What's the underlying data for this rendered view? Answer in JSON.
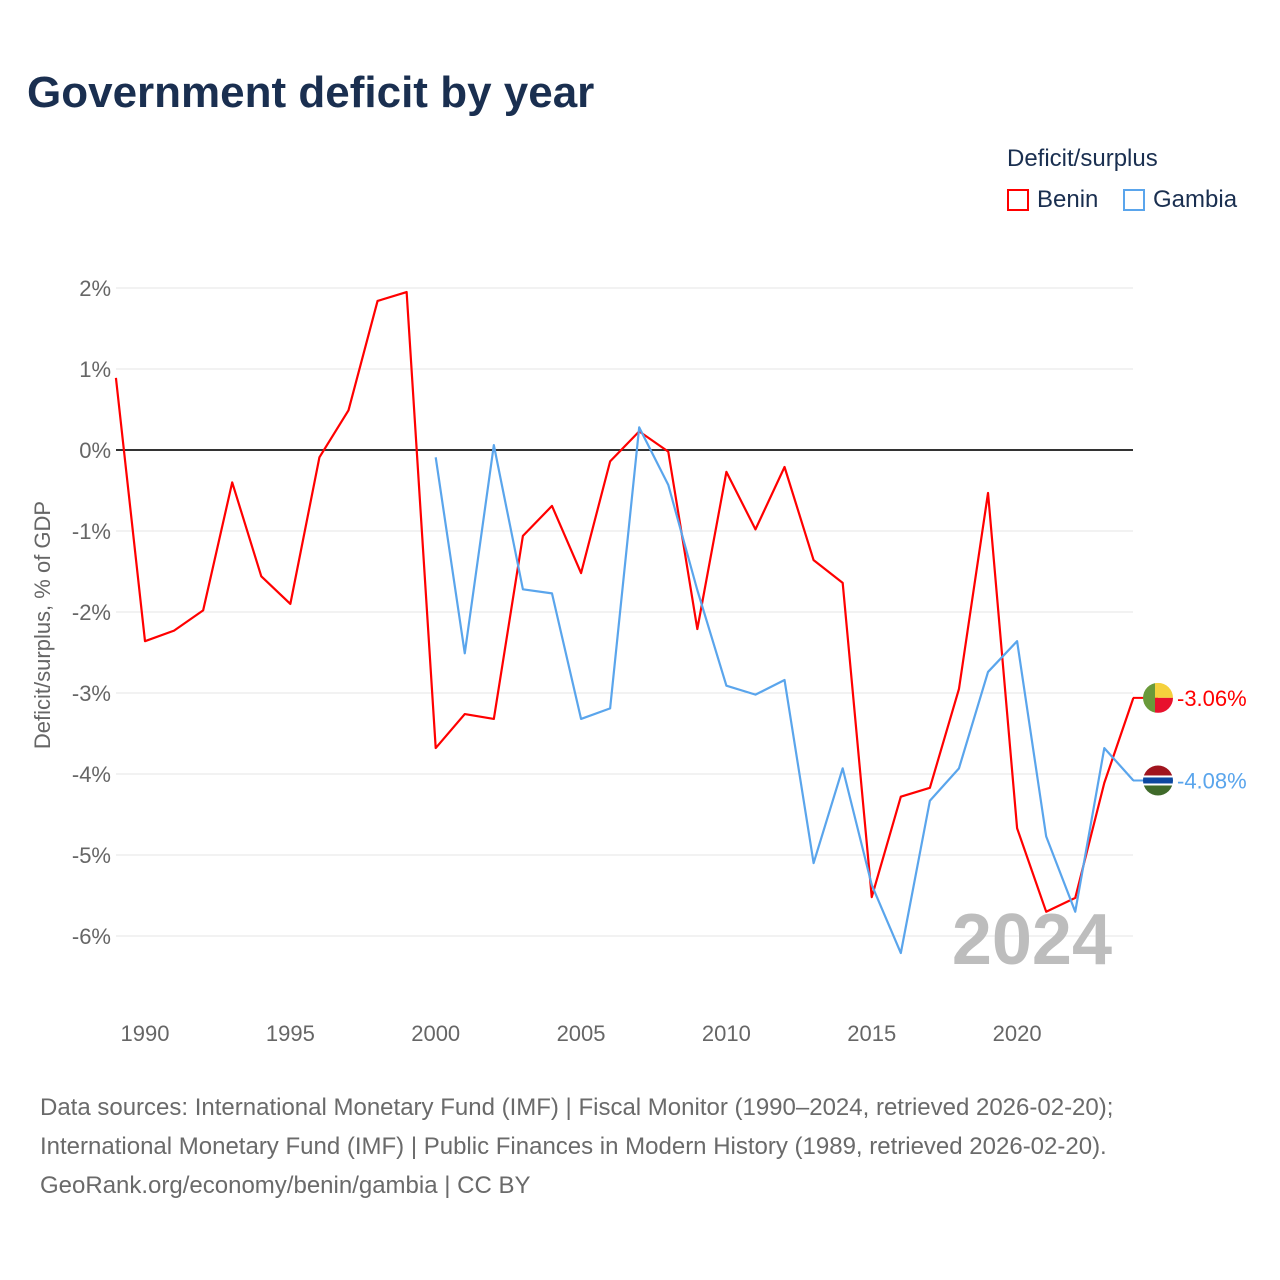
{
  "title": "Government deficit by year",
  "legend": {
    "title": "Deficit/surplus",
    "items": [
      {
        "name": "Benin",
        "color": "#ff0000"
      },
      {
        "name": "Gambia",
        "color": "#5aa5ec"
      }
    ]
  },
  "chart_data": {
    "type": "line",
    "title": "Government deficit by year",
    "xlabel": "",
    "ylabel": "Deficit/surplus, % of GDP",
    "xlim": [
      1989,
      2024
    ],
    "ylim": [
      -6.8,
      2.2
    ],
    "yticks": [
      2,
      1,
      0,
      -1,
      -2,
      -3,
      -4,
      -5,
      -6
    ],
    "ytick_labels": [
      "2%",
      "1%",
      "0%",
      "-1%",
      "-2%",
      "-3%",
      "-4%",
      "-5%",
      "-6%"
    ],
    "xticks": [
      1990,
      1995,
      2000,
      2005,
      2010,
      2015,
      2020
    ],
    "xtick_labels": [
      "1990",
      "1995",
      "2000",
      "2005",
      "2010",
      "2015",
      "2020"
    ],
    "grid": true,
    "year_watermark": "2024",
    "series": [
      {
        "name": "Benin",
        "color": "#ff0000",
        "end_label": "-3.06%",
        "x": [
          1989,
          1990,
          1991,
          1992,
          1993,
          1994,
          1995,
          1996,
          1997,
          1998,
          1999,
          2000,
          2001,
          2002,
          2003,
          2004,
          2005,
          2006,
          2007,
          2008,
          2009,
          2010,
          2011,
          2012,
          2013,
          2014,
          2015,
          2016,
          2017,
          2018,
          2019,
          2020,
          2021,
          2022,
          2023,
          2024
        ],
        "y": [
          0.89,
          -2.36,
          -2.23,
          -1.98,
          -0.4,
          -1.56,
          -1.9,
          -0.09,
          0.49,
          1.84,
          1.95,
          -3.68,
          -3.26,
          -3.32,
          -1.06,
          -0.69,
          -1.52,
          -0.14,
          0.23,
          -0.02,
          -2.21,
          -0.27,
          -0.98,
          -0.21,
          -1.36,
          -1.64,
          -5.52,
          -4.28,
          -4.17,
          -2.95,
          -0.53,
          -4.67,
          -5.7,
          -5.53,
          -4.11,
          -3.06
        ]
      },
      {
        "name": "Gambia",
        "color": "#5aa5ec",
        "end_label": "-4.08%",
        "x": [
          2000,
          2001,
          2002,
          2003,
          2004,
          2005,
          2006,
          2007,
          2008,
          2009,
          2010,
          2011,
          2012,
          2013,
          2014,
          2015,
          2016,
          2017,
          2018,
          2019,
          2020,
          2021,
          2022,
          2023,
          2024
        ],
        "y": [
          -0.09,
          -2.51,
          0.06,
          -1.72,
          -1.77,
          -3.32,
          -3.19,
          0.28,
          -0.43,
          -1.73,
          -2.91,
          -3.02,
          -2.84,
          -5.1,
          -3.93,
          -5.37,
          -6.21,
          -4.33,
          -3.93,
          -2.74,
          -2.36,
          -4.77,
          -5.7,
          -3.68,
          -4.08
        ]
      }
    ]
  },
  "footer": {
    "line1": "Data sources: International Monetary Fund (IMF) | Fiscal Monitor (1990–2024, retrieved 2026-02-20);",
    "line2": "International Monetary Fund (IMF) | Public Finances in Modern History (1989, retrieved 2026-02-20).",
    "line3": "GeoRank.org/economy/benin/gambia | CC BY"
  }
}
